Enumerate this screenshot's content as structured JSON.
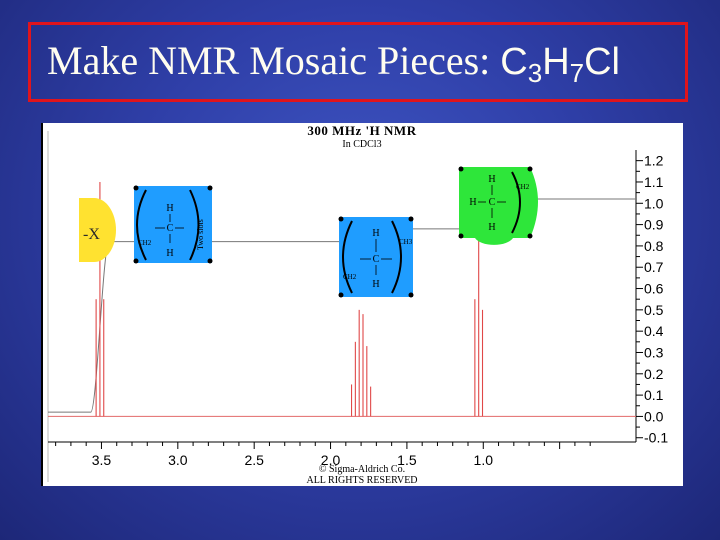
{
  "slide": {
    "title_text": "Make NMR Mosaic Pieces: ",
    "formula": {
      "c": "C",
      "c_n": "3",
      "h": "H",
      "h_n": "7",
      "cl": "Cl"
    }
  },
  "spectrum": {
    "header": "300 MHz 'H NMR",
    "solvent": "In CDCl3",
    "copyright_line1": "© Sigma-Aldrich Co.",
    "copyright_line2": "ALL RIGHTS RESERVED"
  },
  "chart_data": {
    "type": "line",
    "title": "300 MHz 'H NMR",
    "subtitle": "In CDCl3",
    "x_ticks": [
      3.5,
      3.0,
      2.5,
      2.0,
      1.5,
      1.0
    ],
    "x_tick_labels": [
      "3.5",
      "3.0",
      "2.5",
      "2.0",
      "1.5",
      "1.0"
    ],
    "xlim": [
      3.85,
      0.0
    ],
    "y_ticks": [
      -0.1,
      0.0,
      0.1,
      0.2,
      0.3,
      0.4,
      0.5,
      0.6,
      0.7,
      0.8,
      0.9,
      1.0,
      1.1,
      1.2
    ],
    "y_tick_labels": [
      "-0.1",
      "0.0",
      "0.1",
      "0.2",
      "0.3",
      "0.4",
      "0.5",
      "0.6",
      "0.7",
      "0.8",
      "0.9",
      "1.0",
      "1.1",
      "1.2"
    ],
    "ylim": [
      -0.12,
      1.25
    ],
    "grid": false,
    "peaks": [
      {
        "shift": 3.51,
        "multiplicity": "triplet",
        "heights": [
          0.55,
          1.1,
          0.55
        ]
      },
      {
        "shift": 1.8,
        "multiplicity": "sextet",
        "heights": [
          0.15,
          0.35,
          0.5,
          0.48,
          0.33,
          0.14
        ]
      },
      {
        "shift": 1.03,
        "multiplicity": "triplet",
        "heights": [
          0.55,
          1.12,
          0.5
        ]
      }
    ],
    "integral_steps": [
      {
        "shift": 3.51,
        "level_before": 0.02,
        "level_after": 0.82
      },
      {
        "shift": 1.8,
        "level_before": 0.82,
        "level_after": 0.88
      },
      {
        "shift": 1.03,
        "level_before": 0.88,
        "level_after": 1.02
      }
    ]
  },
  "mosaic_pieces": [
    {
      "id": "yellow",
      "color": "#ffe230",
      "label": "-X"
    },
    {
      "id": "blue-1",
      "color": "#1f9dff",
      "top": "H",
      "middle": "C",
      "bottom": "H",
      "left": "CH2",
      "right_vertical": "Two slots"
    },
    {
      "id": "blue-2",
      "color": "#1f9dff",
      "top": "H",
      "middle": "C",
      "bottom": "H",
      "left": "CH2",
      "right": "CH3"
    },
    {
      "id": "green",
      "color": "#2ee63a",
      "top": "H",
      "middle": "C",
      "bottom": "H",
      "left_prefix": "H",
      "right": "CH2"
    }
  ]
}
